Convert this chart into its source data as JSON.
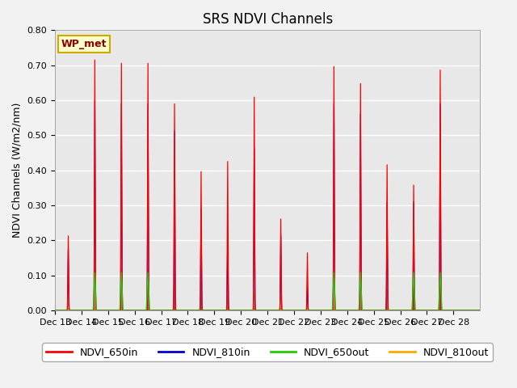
{
  "title": "SRS NDVI Channels",
  "ylabel": "NDVI Channels (W/m2/nm)",
  "annotation": "WP_met",
  "ylim": [
    0.0,
    0.8
  ],
  "colors": {
    "NDVI_650in": "#FF0000",
    "NDVI_810in": "#0000CC",
    "NDVI_650out": "#22CC00",
    "NDVI_810out": "#FFAA00"
  },
  "background_color": "#E8E8E8",
  "grid_color": "#FFFFFF",
  "xtick_labels": [
    "Dec 13",
    "Dec 14",
    "Dec 15",
    "Dec 16",
    "Dec 17",
    "Dec 18",
    "Dec 19",
    "Dec 20",
    "Dec 21",
    "Dec 22",
    "Dec 23",
    "Dec 24",
    "Dec 25",
    "Dec 26",
    "Dec 27",
    "Dec 28"
  ],
  "days": [
    13,
    14,
    15,
    16,
    17,
    18,
    19,
    20,
    21,
    22,
    23,
    24,
    25,
    26,
    27,
    28
  ],
  "peaks_650in": [
    0.22,
    0.74,
    0.73,
    0.73,
    0.61,
    0.41,
    0.44,
    0.63,
    0.27,
    0.17,
    0.72,
    0.67,
    0.43,
    0.37,
    0.71,
    0.0
  ],
  "peaks_810in": [
    0.18,
    0.62,
    0.61,
    0.61,
    0.53,
    0.3,
    0.22,
    0.48,
    0.22,
    0.07,
    0.61,
    0.58,
    0.32,
    0.32,
    0.61,
    0.0
  ],
  "peaks_650out": [
    0.0,
    0.11,
    0.11,
    0.11,
    0.0,
    0.0,
    0.0,
    0.0,
    0.0,
    0.0,
    0.11,
    0.11,
    0.0,
    0.11,
    0.11,
    0.0
  ],
  "peaks_810out": [
    0.02,
    0.12,
    0.12,
    0.12,
    0.1,
    0.04,
    0.04,
    0.05,
    0.04,
    0.01,
    0.1,
    0.1,
    0.06,
    0.1,
    0.11,
    0.0
  ],
  "title_fontsize": 12,
  "label_fontsize": 9,
  "tick_fontsize": 8,
  "legend_fontsize": 9
}
